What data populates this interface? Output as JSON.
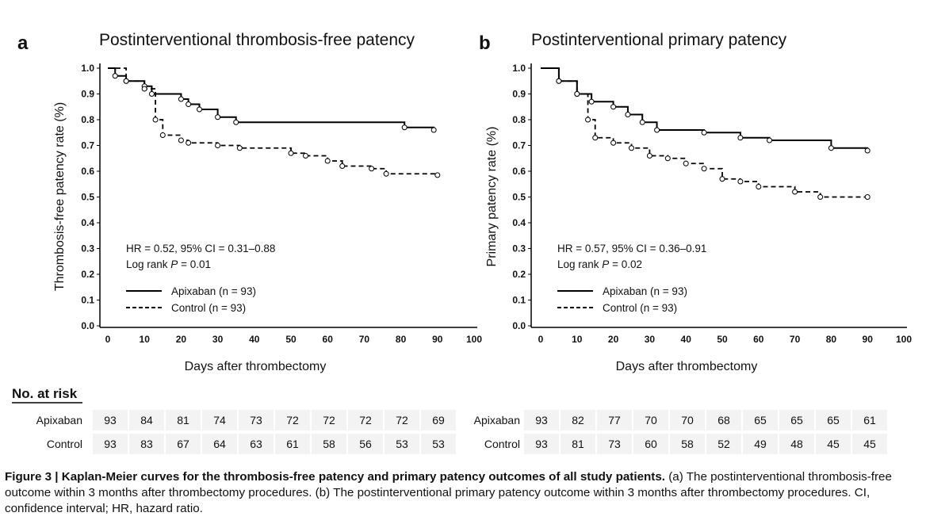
{
  "chart_data": [
    {
      "type": "line",
      "panel_letter": "a",
      "title": "Postinterventional thrombosis-free patency",
      "xlabel": "Days after thrombectomy",
      "ylabel": "Thrombosis-free patency rate (%)",
      "xlim": [
        0,
        100
      ],
      "ylim": [
        0,
        1.0
      ],
      "xticks": [
        "0",
        "10",
        "20",
        "30",
        "40",
        "50",
        "60",
        "70",
        "80",
        "90",
        "100"
      ],
      "yticks": [
        "0.0",
        "0.1",
        "0.2",
        "0.3",
        "0.4",
        "0.5",
        "0.6",
        "0.7",
        "0.8",
        "0.9",
        "1.0"
      ],
      "annotation": [
        "HR = 0.52, 95% CI = 0.31–0.88",
        "Log rank ",
        "P",
        " = 0.01"
      ],
      "series": [
        {
          "name": "Apixaban",
          "legend": "Apixaban (n = 93)",
          "style": "solid",
          "x": [
            0,
            2,
            5,
            10,
            12,
            20,
            22,
            25,
            30,
            35,
            81,
            89
          ],
          "y": [
            1.0,
            0.97,
            0.95,
            0.93,
            0.9,
            0.88,
            0.86,
            0.84,
            0.81,
            0.79,
            0.77,
            0.76
          ]
        },
        {
          "name": "Control",
          "legend": "Control    (n = 93)",
          "style": "dashed",
          "x": [
            0,
            5,
            10,
            13,
            15,
            20,
            22,
            30,
            36,
            50,
            54,
            60,
            64,
            72,
            76,
            90
          ],
          "y": [
            1.0,
            0.95,
            0.92,
            0.8,
            0.74,
            0.72,
            0.71,
            0.7,
            0.69,
            0.67,
            0.66,
            0.64,
            0.62,
            0.61,
            0.59,
            0.585
          ]
        }
      ],
      "risk": {
        "Apixaban": [
          93,
          84,
          81,
          74,
          73,
          72,
          72,
          72,
          72,
          69
        ],
        "Control": [
          93,
          83,
          67,
          64,
          63,
          61,
          58,
          56,
          53,
          53
        ]
      }
    },
    {
      "type": "line",
      "panel_letter": "b",
      "title": "Postinterventional primary patency",
      "xlabel": "Days after thrombectomy",
      "ylabel": "Primary patency rate (%)",
      "xlim": [
        0,
        100
      ],
      "ylim": [
        0,
        1.0
      ],
      "xticks": [
        "0",
        "10",
        "20",
        "30",
        "40",
        "50",
        "60",
        "70",
        "80",
        "90",
        "100"
      ],
      "yticks": [
        "0.0",
        "0.1",
        "0.2",
        "0.3",
        "0.4",
        "0.5",
        "0.6",
        "0.7",
        "0.8",
        "0.9",
        "1.0"
      ],
      "annotation": [
        "HR = 0.57, 95% CI = 0.36–0.91",
        "Log rank ",
        "P",
        " = 0.02"
      ],
      "series": [
        {
          "name": "Apixaban",
          "legend": "Apixaban (n = 93)",
          "style": "solid",
          "x": [
            0,
            5,
            10,
            14,
            20,
            24,
            28,
            32,
            45,
            55,
            63,
            80,
            90
          ],
          "y": [
            1.0,
            0.95,
            0.9,
            0.87,
            0.85,
            0.82,
            0.79,
            0.76,
            0.75,
            0.73,
            0.72,
            0.69,
            0.68
          ]
        },
        {
          "name": "Control",
          "legend": "Control    (n = 93)",
          "style": "dashed",
          "x": [
            0,
            5,
            10,
            13,
            15,
            20,
            25,
            30,
            35,
            40,
            45,
            50,
            55,
            60,
            70,
            77,
            90
          ],
          "y": [
            1.0,
            0.95,
            0.9,
            0.8,
            0.73,
            0.71,
            0.69,
            0.66,
            0.65,
            0.63,
            0.61,
            0.57,
            0.56,
            0.54,
            0.52,
            0.5,
            0.5
          ]
        }
      ],
      "risk": {
        "Apixaban": [
          93,
          82,
          77,
          70,
          70,
          68,
          65,
          65,
          65,
          61
        ],
        "Control": [
          93,
          81,
          73,
          60,
          58,
          52,
          49,
          48,
          45,
          45
        ]
      }
    }
  ],
  "risk_header": "No. at risk",
  "caption": {
    "label": "Figure 3 | Kaplan-Meier curves for the thrombosis-free patency and primary patency outcomes of all study patients.",
    "text": " (a) The postinterventional thrombosis-free outcome within 3 months after thrombectomy procedures. (b) The postinterventional primary patency outcome within 3 months after thrombectomy procedures. CI, confidence interval; HR, hazard ratio."
  }
}
